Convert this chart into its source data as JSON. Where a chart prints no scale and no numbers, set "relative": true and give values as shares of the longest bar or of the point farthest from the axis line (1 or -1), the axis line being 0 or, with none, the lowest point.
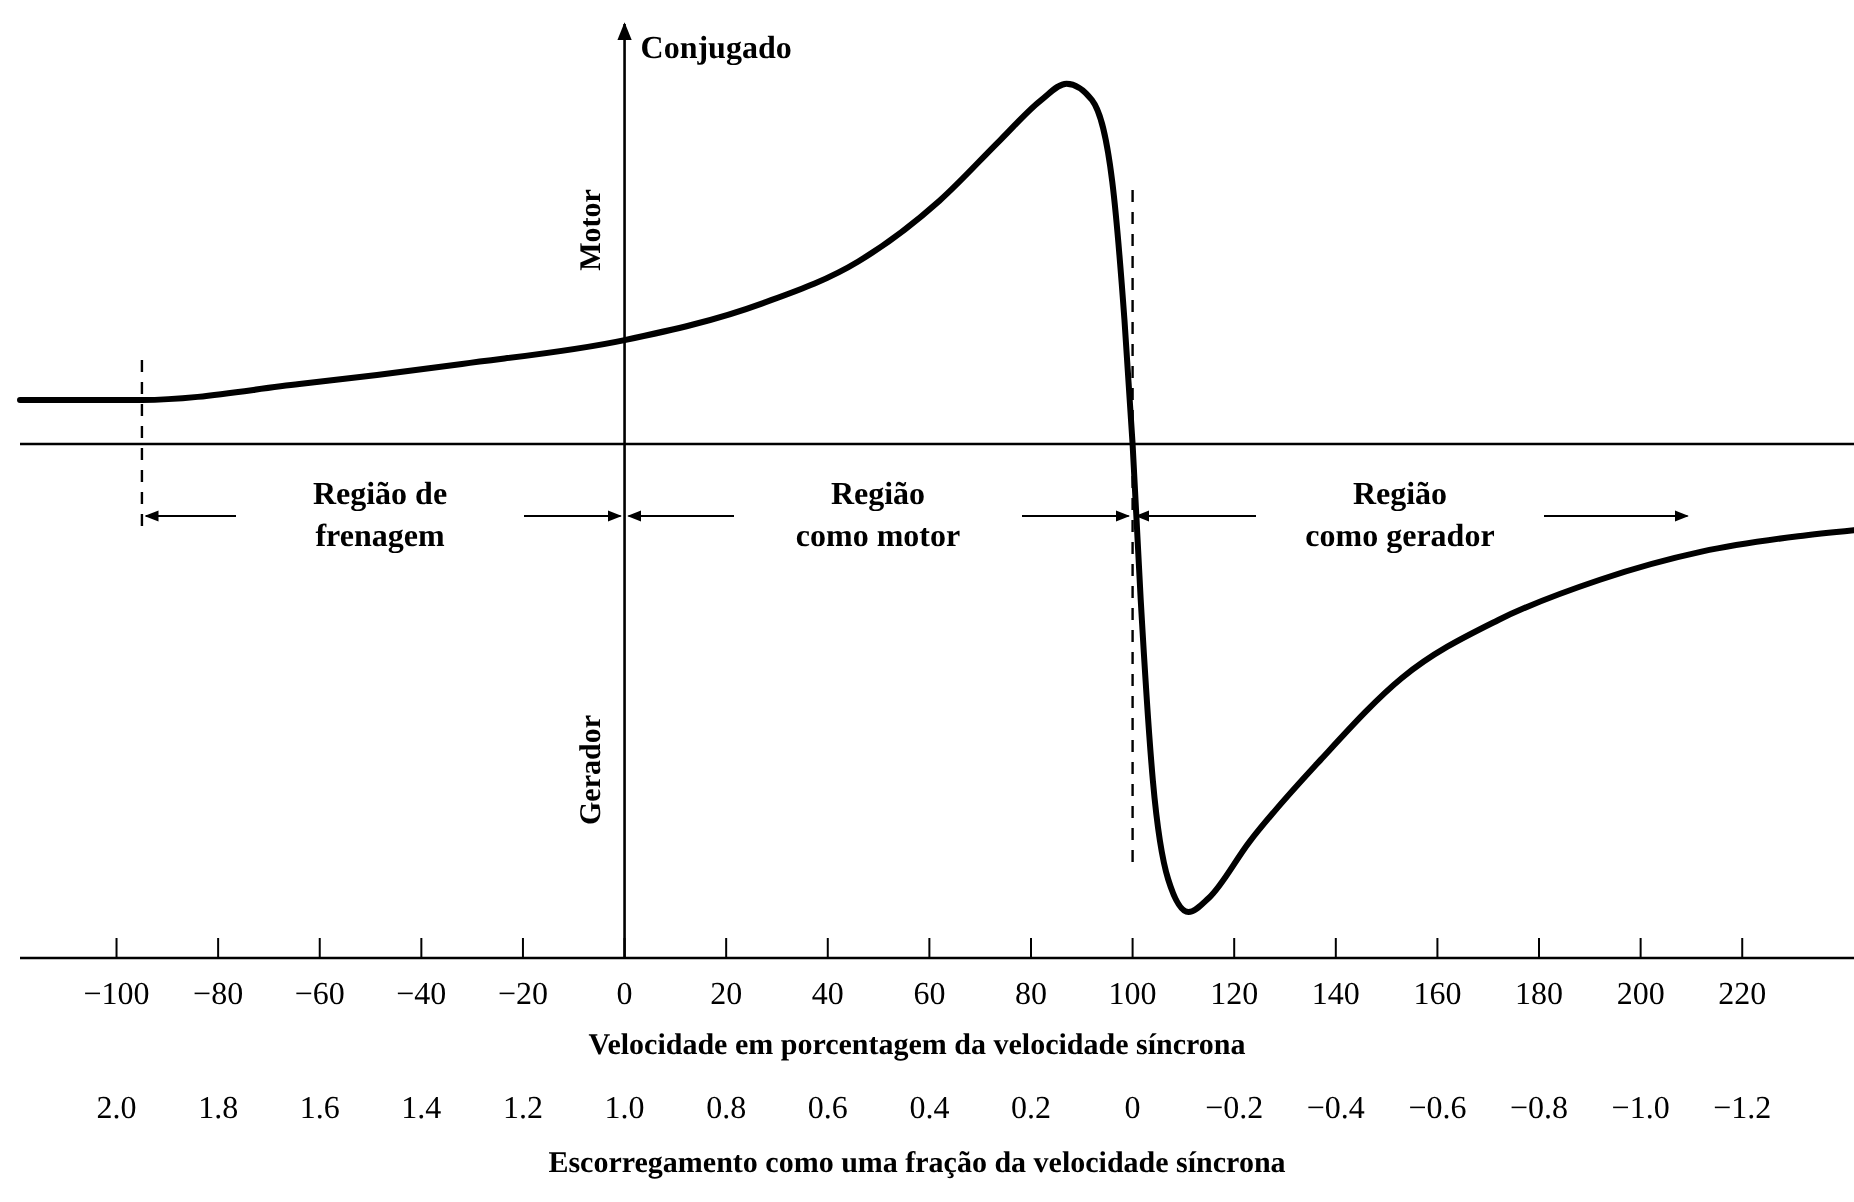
{
  "chart_data": {
    "type": "line",
    "relative": true,
    "ylabel": "Conjugado",
    "xlabel": "Velocidade em porcentagem da velocidade síncrona",
    "x2label": "Escorregamento como uma fração da velocidade síncrona",
    "xlim": [
      -119,
      242
    ],
    "xticks": [
      {
        "value": -100,
        "label": "−100"
      },
      {
        "value": -80,
        "label": "−80"
      },
      {
        "value": -60,
        "label": "−60"
      },
      {
        "value": -40,
        "label": "−40"
      },
      {
        "value": -20,
        "label": "−20"
      },
      0,
      20,
      40,
      60,
      80,
      100,
      120,
      140,
      160,
      180,
      200,
      220
    ],
    "x2lim": [
      2.19,
      -1.42
    ],
    "x2ticks": [
      {
        "value": 2,
        "label": "2.0"
      },
      1.8,
      1.6,
      1.4,
      1.2,
      {
        "value": 1,
        "label": "1.0"
      },
      0.8,
      0.6,
      0.4,
      0.2,
      0,
      {
        "value": -0.2,
        "label": "−0.2"
      },
      {
        "value": -0.4,
        "label": "−0.4"
      },
      {
        "value": -0.6,
        "label": "−0.6"
      },
      {
        "value": -0.8,
        "label": "−0.8"
      },
      {
        "value": -1,
        "label": "−1.0"
      },
      {
        "value": -1.2,
        "label": "−1.2"
      }
    ],
    "series": [
      {
        "color": "#000000",
        "x": [
          -119,
          -95,
          -64,
          -32,
          0,
          27,
          46,
          62,
          74,
          82,
          87,
          92,
          96,
          98.4,
          100,
          101.6,
          104,
          107,
          111,
          115,
          123,
          137,
          153,
          172,
          192,
          212,
          231,
          242
        ],
        "values": [
          0.094,
          0.094,
          0.128,
          0.171,
          0.222,
          0.3,
          0.39,
          0.52,
          0.65,
          0.735,
          0.77,
          0.735,
          0.56,
          0.265,
          0,
          -0.333,
          -0.72,
          -0.93,
          -1,
          -0.97,
          -0.85,
          -0.675,
          -0.5,
          -0.376,
          -0.29,
          -0.23,
          -0.197,
          -0.184
        ]
      }
    ],
    "ref_lines": [
      {
        "axis": "x",
        "value": -95,
        "line_style": "dashed",
        "color": "#000000"
      },
      {
        "axis": "x",
        "value": 100,
        "line_style": "dashed",
        "color": "#000000"
      }
    ],
    "annotations": [
      "Motor",
      "Gerador",
      "Região de\nfrenagem",
      "Região\ncomo motor",
      "Região\ncomo gerador"
    ],
    "grid": false,
    "marker": "none",
    "line_style": "solid"
  }
}
